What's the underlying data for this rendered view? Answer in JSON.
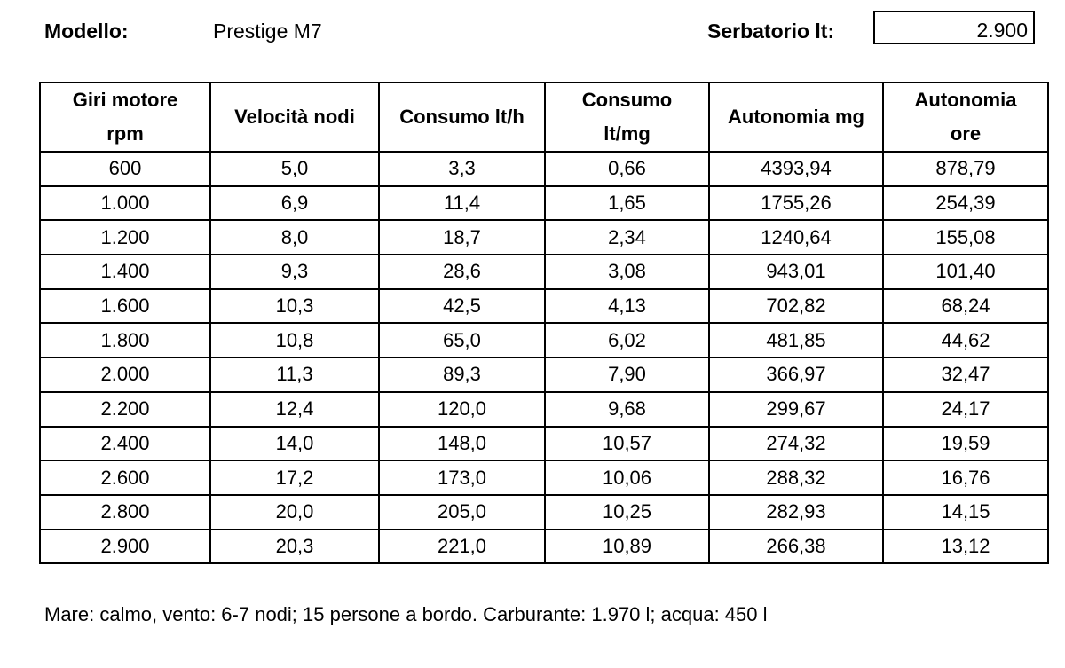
{
  "header": {
    "model_label": "Modello:",
    "model_value": "Prestige M7",
    "tank_label": "Serbatorio lt:",
    "tank_value": "2.900"
  },
  "table": {
    "columns": [
      "Giri motore rpm",
      "Velocità nodi",
      "Consumo lt/h",
      "Consumo lt/mg",
      "Autonomia mg",
      "Autonomia ore"
    ],
    "rows": [
      [
        "600",
        "5,0",
        "3,3",
        "0,66",
        "4393,94",
        "878,79"
      ],
      [
        "1.000",
        "6,9",
        "11,4",
        "1,65",
        "1755,26",
        "254,39"
      ],
      [
        "1.200",
        "8,0",
        "18,7",
        "2,34",
        "1240,64",
        "155,08"
      ],
      [
        "1.400",
        "9,3",
        "28,6",
        "3,08",
        "943,01",
        "101,40"
      ],
      [
        "1.600",
        "10,3",
        "42,5",
        "4,13",
        "702,82",
        "68,24"
      ],
      [
        "1.800",
        "10,8",
        "65,0",
        "6,02",
        "481,85",
        "44,62"
      ],
      [
        "2.000",
        "11,3",
        "89,3",
        "7,90",
        "366,97",
        "32,47"
      ],
      [
        "2.200",
        "12,4",
        "120,0",
        "9,68",
        "299,67",
        "24,17"
      ],
      [
        "2.400",
        "14,0",
        "148,0",
        "10,57",
        "274,32",
        "19,59"
      ],
      [
        "2.600",
        "17,2",
        "173,0",
        "10,06",
        "288,32",
        "16,76"
      ],
      [
        "2.800",
        "20,0",
        "205,0",
        "10,25",
        "282,93",
        "14,15"
      ],
      [
        "2.900",
        "20,3",
        "221,0",
        "10,89",
        "266,38",
        "13,12"
      ]
    ]
  },
  "footer": "Mare: calmo, vento: 6-7 nodi; 15 persone a bordo. Carburante: 1.970 l; acqua: 450 l"
}
